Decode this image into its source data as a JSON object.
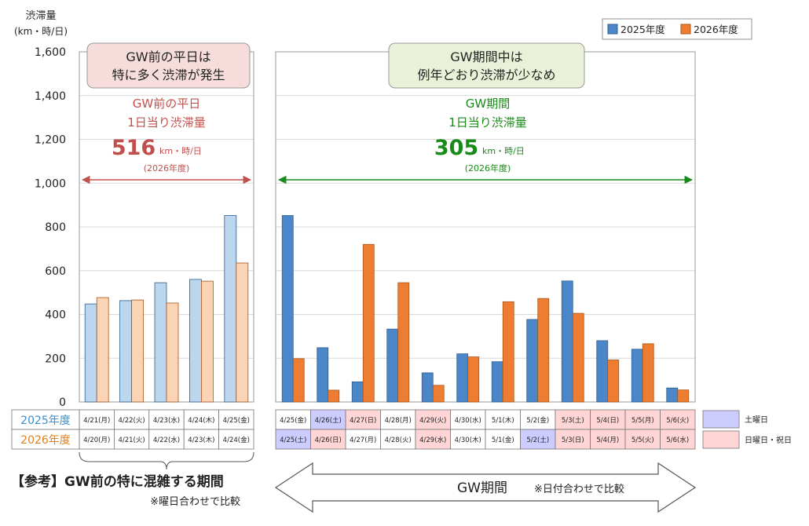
{
  "chart_data": {
    "type": "bar",
    "ylabel": "渋滞量",
    "yunit": "(km・時/日)",
    "ylim": [
      0,
      1600
    ],
    "yticks": [
      "0",
      "200",
      "400",
      "600",
      "800",
      "1,000",
      "1,200",
      "1,400",
      "1,600"
    ],
    "series_names": [
      "2025年度",
      "2026年度"
    ],
    "colors": {
      "s2025": "#4a86c8",
      "s2026": "#ee7d31",
      "s2025_light": "#bcd6ee",
      "s2026_light": "#fbd4b6",
      "saturday": "#ccccff",
      "holiday": "#ffd5d5",
      "red": "#c0504d",
      "green": "#1a8a1a",
      "blue_label": "#3c8fc9",
      "orange_label": "#e0821e"
    },
    "left_panel": {
      "box_title": "GW前の平日は\n特に多く渋滞が発生",
      "metric_line1": "GW前の平日",
      "metric_line2": "1日当り渋滞量",
      "value": "516",
      "unit": "km・時/日",
      "year": "(2026年度)",
      "dates_2025": [
        "4/21(月)",
        "4/22(火)",
        "4/23(水)",
        "4/24(木)",
        "4/25(金)"
      ],
      "dates_2026": [
        "4/20(月)",
        "4/21(火)",
        "4/22(水)",
        "4/23(木)",
        "4/24(金)"
      ],
      "values_2025": [
        448,
        463,
        545,
        560,
        852
      ],
      "values_2026": [
        477,
        466,
        452,
        552,
        635
      ]
    },
    "right_panel": {
      "box_title": "GW期間中は\n例年どおり渋滞が少なめ",
      "metric_line1": "GW期間",
      "metric_line2": "1日当り渋滞量",
      "value": "305",
      "unit": "km・時/日",
      "year": "(2026年度)",
      "dates_2025": [
        "4/25(金)",
        "4/26(土)",
        "4/27(日)",
        "4/28(月)",
        "4/29(火)",
        "4/30(水)",
        "5/1(木)",
        "5/2(金)",
        "5/3(土)",
        "5/4(日)",
        "5/5(月)",
        "5/6(火)"
      ],
      "dates_2026": [
        "4/25(土)",
        "4/26(日)",
        "4/27(月)",
        "4/28(火)",
        "4/29(水)",
        "4/30(木)",
        "5/1(金)",
        "5/2(土)",
        "5/3(日)",
        "5/4(月)",
        "5/5(火)",
        "5/6(水)"
      ],
      "day_type_2025": [
        "none",
        "sat",
        "hol",
        "none",
        "hol",
        "none",
        "none",
        "none",
        "hol",
        "hol",
        "hol",
        "hol"
      ],
      "day_type_2026": [
        "sat",
        "hol",
        "none",
        "none",
        "hol",
        "none",
        "none",
        "sat",
        "hol",
        "hol",
        "hol",
        "hol"
      ],
      "values_2025": [
        852,
        248,
        92,
        333,
        133,
        220,
        184,
        377,
        553,
        280,
        241,
        64
      ],
      "values_2026": [
        198,
        54,
        720,
        545,
        76,
        206,
        458,
        473,
        405,
        192,
        266,
        55
      ]
    },
    "row_labels": [
      "2025年度",
      "2026年度"
    ],
    "key_saturday": "土曜日",
    "key_holiday": "日曜日・祝日",
    "reference_title": "【参考】GW前の特に混雑する期間",
    "reference_note": "※曜日合わせで比較",
    "gw_label": "GW期間",
    "gw_note": "※日付合わせで比較"
  }
}
